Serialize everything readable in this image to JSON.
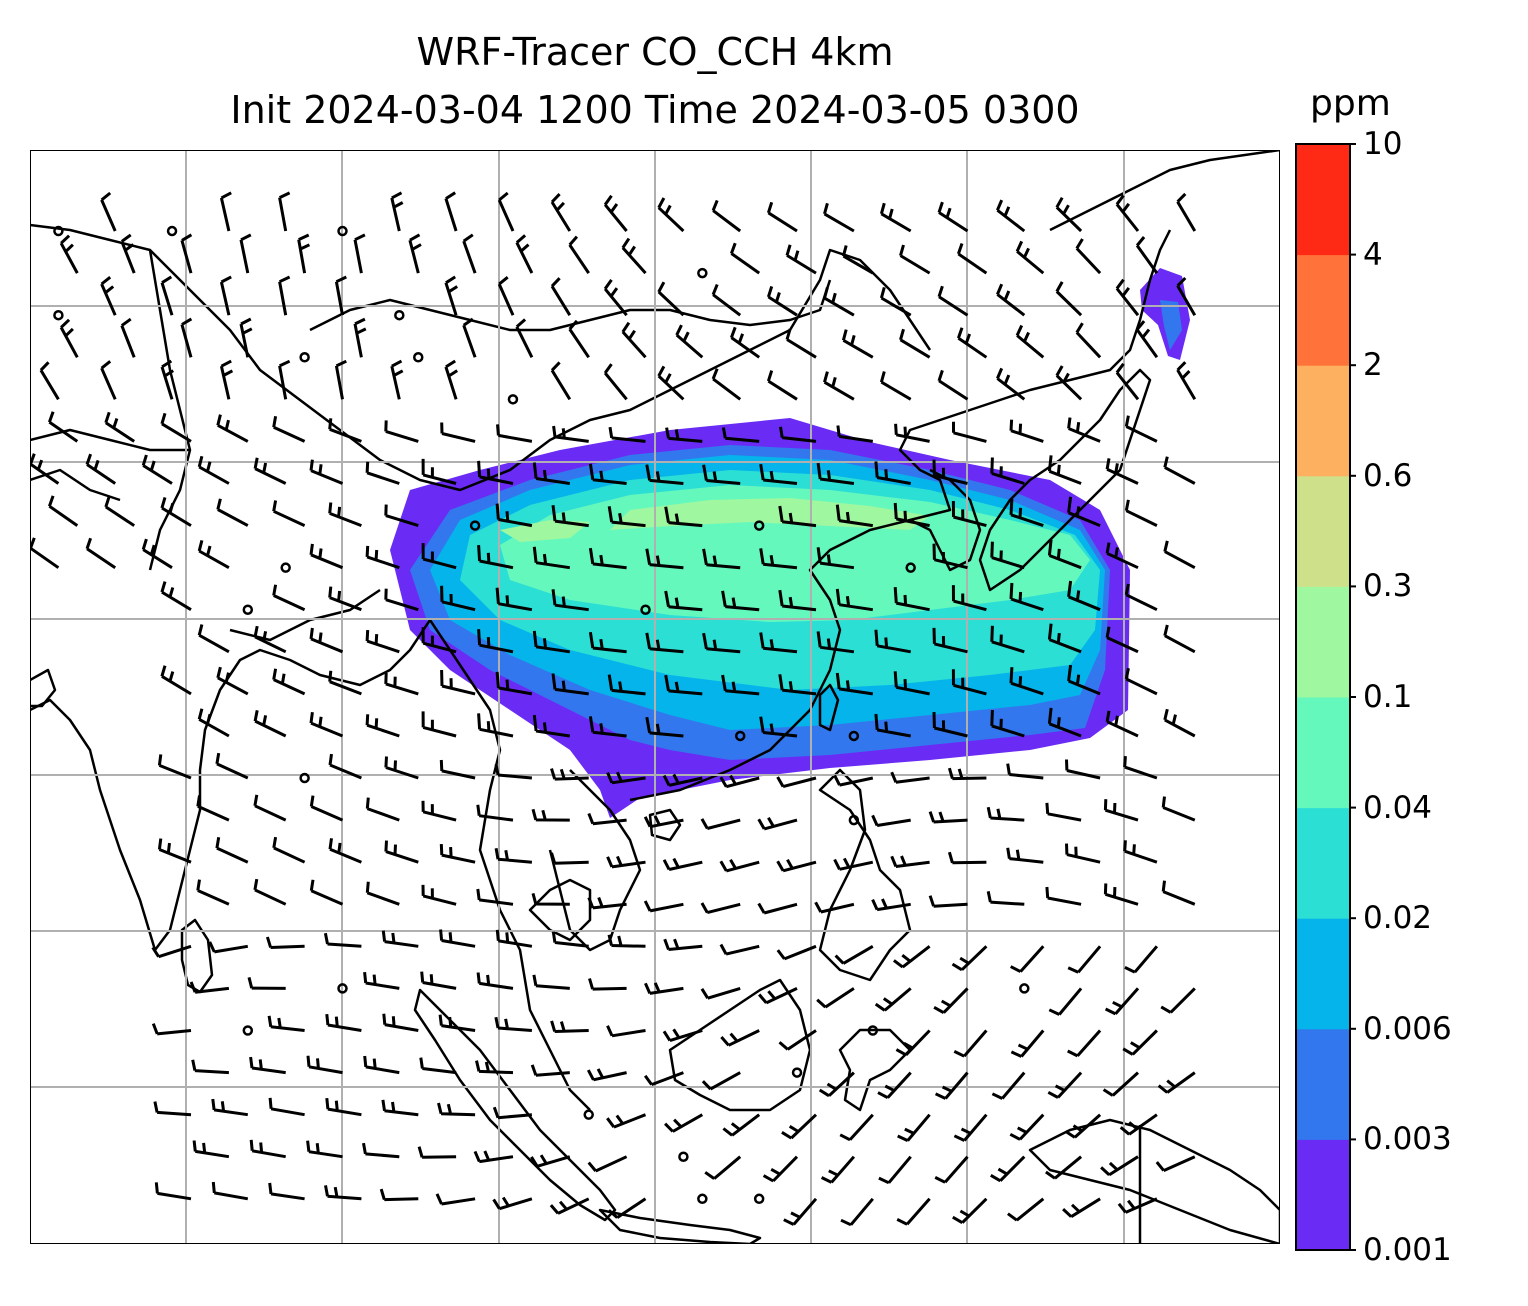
{
  "title_line1": "WRF-Tracer CO_CCH 4km",
  "title_line2": "Init 2024-03-04 1200 Time 2024-03-05 0300",
  "colorbar": {
    "unit": "ppm",
    "levels": [
      "0.001",
      "0.003",
      "0.006",
      "0.02",
      "0.04",
      "0.1",
      "0.3",
      "0.6",
      "2",
      "4",
      "10"
    ],
    "colors": [
      "#6a2cf5",
      "#3377ee",
      "#05b4ea",
      "#2cdfd4",
      "#65f8bd",
      "#9ff79f",
      "#cfe08a",
      "#fcb060",
      "#ff7239",
      "#ff2a15"
    ]
  },
  "map": {
    "background": "#ffffff",
    "coastline_color": "#000000",
    "gridline_color": "#b0b0b0",
    "barb_color": "#000000"
  }
}
